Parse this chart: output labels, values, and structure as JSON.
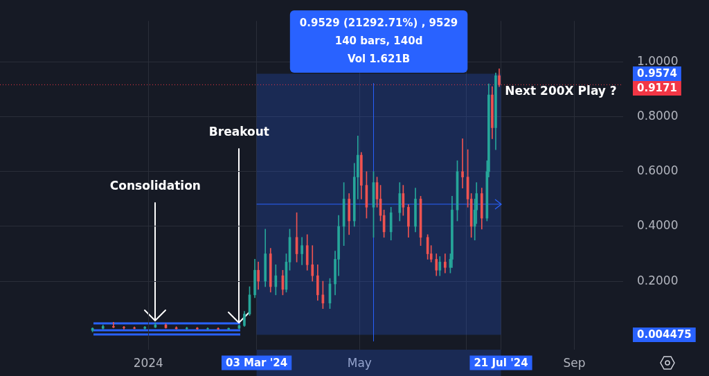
{
  "chart_data": {
    "type": "candlestick",
    "x": [
      "2023-11-30",
      "2023-12-06",
      "2023-12-12",
      "2023-12-18",
      "2023-12-24",
      "2023-12-30",
      "2024-01-05",
      "2024-01-11",
      "2024-01-17",
      "2024-01-23",
      "2024-01-29",
      "2024-02-04",
      "2024-02-10",
      "2024-02-16",
      "2024-02-22",
      "2024-02-25",
      "2024-02-28",
      "2024-03-02",
      "2024-03-04",
      "2024-03-08",
      "2024-03-11",
      "2024-03-14",
      "2024-03-18",
      "2024-03-20",
      "2024-03-22",
      "2024-03-26",
      "2024-03-29",
      "2024-04-01",
      "2024-04-04",
      "2024-04-07",
      "2024-04-10",
      "2024-04-14",
      "2024-04-17",
      "2024-04-19",
      "2024-04-22",
      "2024-04-25",
      "2024-04-28",
      "2024-04-30",
      "2024-05-02",
      "2024-05-05",
      "2024-05-09",
      "2024-05-11",
      "2024-05-13",
      "2024-05-15",
      "2024-05-19",
      "2024-05-24",
      "2024-05-26",
      "2024-05-29",
      "2024-06-02",
      "2024-06-05",
      "2024-06-09",
      "2024-06-11",
      "2024-06-14",
      "2024-06-16",
      "2024-06-19",
      "2024-06-22",
      "2024-06-23",
      "2024-06-26",
      "2024-06-29",
      "2024-07-02",
      "2024-07-04",
      "2024-07-06",
      "2024-07-07",
      "2024-07-10",
      "2024-07-13",
      "2024-07-14",
      "2024-07-16",
      "2024-07-18",
      "2024-07-20"
    ],
    "ohlc": [
      [
        0.02,
        0.03,
        0.015,
        0.028
      ],
      [
        0.028,
        0.04,
        0.025,
        0.035
      ],
      [
        0.035,
        0.05,
        0.03,
        0.032
      ],
      [
        0.032,
        0.035,
        0.025,
        0.03
      ],
      [
        0.03,
        0.033,
        0.026,
        0.028
      ],
      [
        0.028,
        0.035,
        0.025,
        0.032
      ],
      [
        0.032,
        0.048,
        0.03,
        0.04
      ],
      [
        0.04,
        0.045,
        0.028,
        0.03
      ],
      [
        0.03,
        0.034,
        0.025,
        0.027
      ],
      [
        0.027,
        0.032,
        0.024,
        0.029
      ],
      [
        0.029,
        0.031,
        0.024,
        0.026
      ],
      [
        0.026,
        0.03,
        0.023,
        0.027
      ],
      [
        0.027,
        0.03,
        0.024,
        0.025
      ],
      [
        0.025,
        0.029,
        0.023,
        0.028
      ],
      [
        0.028,
        0.04,
        0.026,
        0.038
      ],
      [
        0.038,
        0.09,
        0.035,
        0.08
      ],
      [
        0.08,
        0.18,
        0.075,
        0.15
      ],
      [
        0.15,
        0.28,
        0.14,
        0.24
      ],
      [
        0.24,
        0.27,
        0.17,
        0.2
      ],
      [
        0.2,
        0.39,
        0.18,
        0.3
      ],
      [
        0.3,
        0.32,
        0.16,
        0.18
      ],
      [
        0.18,
        0.26,
        0.15,
        0.22
      ],
      [
        0.22,
        0.24,
        0.15,
        0.17
      ],
      [
        0.17,
        0.3,
        0.16,
        0.27
      ],
      [
        0.27,
        0.39,
        0.24,
        0.36
      ],
      [
        0.36,
        0.45,
        0.27,
        0.3
      ],
      [
        0.3,
        0.36,
        0.26,
        0.33
      ],
      [
        0.33,
        0.37,
        0.24,
        0.26
      ],
      [
        0.26,
        0.33,
        0.2,
        0.22
      ],
      [
        0.22,
        0.26,
        0.13,
        0.15
      ],
      [
        0.15,
        0.2,
        0.1,
        0.12
      ],
      [
        0.12,
        0.21,
        0.1,
        0.19
      ],
      [
        0.19,
        0.31,
        0.15,
        0.28
      ],
      [
        0.28,
        0.44,
        0.22,
        0.4
      ],
      [
        0.4,
        0.56,
        0.33,
        0.5
      ],
      [
        0.5,
        0.52,
        0.37,
        0.42
      ],
      [
        0.42,
        0.63,
        0.4,
        0.58
      ],
      [
        0.58,
        0.73,
        0.5,
        0.66
      ],
      [
        0.66,
        0.67,
        0.5,
        0.55
      ],
      [
        0.55,
        0.6,
        0.43,
        0.47
      ],
      [
        0.47,
        0.6,
        0.36,
        0.56
      ],
      [
        0.56,
        0.58,
        0.47,
        0.5
      ],
      [
        0.5,
        0.55,
        0.42,
        0.44
      ],
      [
        0.44,
        0.46,
        0.36,
        0.38
      ],
      [
        0.38,
        0.47,
        0.35,
        0.45
      ],
      [
        0.45,
        0.56,
        0.42,
        0.52
      ],
      [
        0.52,
        0.55,
        0.44,
        0.47
      ],
      [
        0.47,
        0.48,
        0.36,
        0.4
      ],
      [
        0.4,
        0.54,
        0.38,
        0.5
      ],
      [
        0.5,
        0.51,
        0.33,
        0.36
      ],
      [
        0.36,
        0.37,
        0.28,
        0.3
      ],
      [
        0.3,
        0.33,
        0.27,
        0.28
      ],
      [
        0.28,
        0.3,
        0.22,
        0.24
      ],
      [
        0.24,
        0.29,
        0.22,
        0.27
      ],
      [
        0.27,
        0.3,
        0.23,
        0.25
      ],
      [
        0.25,
        0.3,
        0.23,
        0.28
      ],
      [
        0.28,
        0.51,
        0.25,
        0.46
      ],
      [
        0.46,
        0.64,
        0.42,
        0.6
      ],
      [
        0.6,
        0.72,
        0.54,
        0.58
      ],
      [
        0.58,
        0.68,
        0.47,
        0.5
      ],
      [
        0.5,
        0.52,
        0.36,
        0.4
      ],
      [
        0.4,
        0.5,
        0.35,
        0.46
      ],
      [
        0.46,
        0.56,
        0.41,
        0.52
      ],
      [
        0.52,
        0.54,
        0.39,
        0.43
      ],
      [
        0.43,
        0.64,
        0.42,
        0.6
      ],
      [
        0.6,
        0.92,
        0.58,
        0.88
      ],
      [
        0.88,
        0.91,
        0.72,
        0.76
      ],
      [
        0.76,
        0.96,
        0.68,
        0.95
      ],
      [
        0.95,
        0.975,
        0.91,
        0.9171
      ]
    ],
    "xlim": [
      "2023-10-08",
      "2024-09-29"
    ],
    "xticks": [
      {
        "value": "2024-01-01",
        "label": "2024"
      },
      {
        "value": "2024-03-03",
        "label": "03 Mar '24"
      },
      {
        "value": "2024-05-01",
        "label": "May"
      },
      {
        "value": "2024-07-01",
        "label": null
      },
      {
        "value": "2024-07-21",
        "label": "21 Jul '24"
      },
      {
        "value": "2024-09-01",
        "label": "Sep"
      }
    ],
    "ylim": [
      -0.05,
      1.15
    ],
    "yticks": [
      {
        "value": 0.004475,
        "label": "0.004475"
      },
      {
        "value": 0.9574,
        "label": "0.9574"
      },
      {
        "value": 0.2,
        "label": "0.2000"
      },
      {
        "value": 0.4,
        "label": "0.4000"
      },
      {
        "value": 0.6,
        "label": "0.6000"
      },
      {
        "value": 0.8,
        "label": "0.8000"
      },
      {
        "value": 1.0,
        "label": "1.0000"
      }
    ],
    "grid": true,
    "bands": [
      {
        "axis": "x",
        "from": "2024-03-03",
        "to": "2024-07-21",
        "color": "#2962ff"
      }
    ],
    "ref_lines": [
      {
        "axis": "y",
        "value": 0.9171,
        "label": "0.9171",
        "color": "#f23645",
        "line_style": "dotted"
      },
      {
        "axis": "y",
        "value": 0.481,
        "color": "#2962ff"
      },
      {
        "axis": "x",
        "value": "2024-05-09",
        "color": "#2962ff"
      }
    ],
    "annotations": [
      "0.9529 (21292.71%) , 9529",
      "140 bars, 140d",
      "Vol 1.621B",
      "Next 200X Play ?",
      {
        "text": "Consolidation",
        "x": "2024-01-05",
        "y": 0.048
      },
      {
        "text": "Breakout",
        "x": "2024-02-22",
        "y": 0.04
      }
    ]
  }
}
